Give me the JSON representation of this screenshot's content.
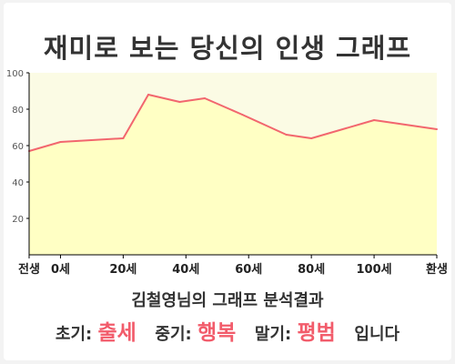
{
  "title": "재미로 보는 당신의 인생 그래프",
  "chart_data": {
    "type": "area",
    "x": [
      -10,
      0,
      20,
      28,
      38,
      46,
      58,
      72,
      80,
      100,
      120
    ],
    "y": [
      57,
      62,
      64,
      88,
      84,
      86,
      77,
      66,
      64,
      74,
      69
    ],
    "xticks": [
      {
        "v": -10,
        "label": "전생"
      },
      {
        "v": 0,
        "label": "0세"
      },
      {
        "v": 20,
        "label": "20세"
      },
      {
        "v": 40,
        "label": "40세"
      },
      {
        "v": 60,
        "label": "60세"
      },
      {
        "v": 80,
        "label": "80세"
      },
      {
        "v": 100,
        "label": "100세"
      },
      {
        "v": 120,
        "label": "환생"
      }
    ],
    "yticks": [
      20,
      40,
      60,
      80,
      100
    ],
    "xlim": [
      -10,
      120
    ],
    "ylim": [
      0,
      100
    ],
    "grid": false,
    "colors": {
      "line": "#f2666e",
      "fill": "#ffffc4",
      "plot_bg": "#fbfbe4"
    }
  },
  "summary": "김철영님의 그래프 분석결과",
  "verdict": {
    "early_label": "초기:",
    "early_value": "출세",
    "middle_label": "중기:",
    "middle_value": "행복",
    "late_label": "말기:",
    "late_value": "평범",
    "suffix": "입니다"
  }
}
